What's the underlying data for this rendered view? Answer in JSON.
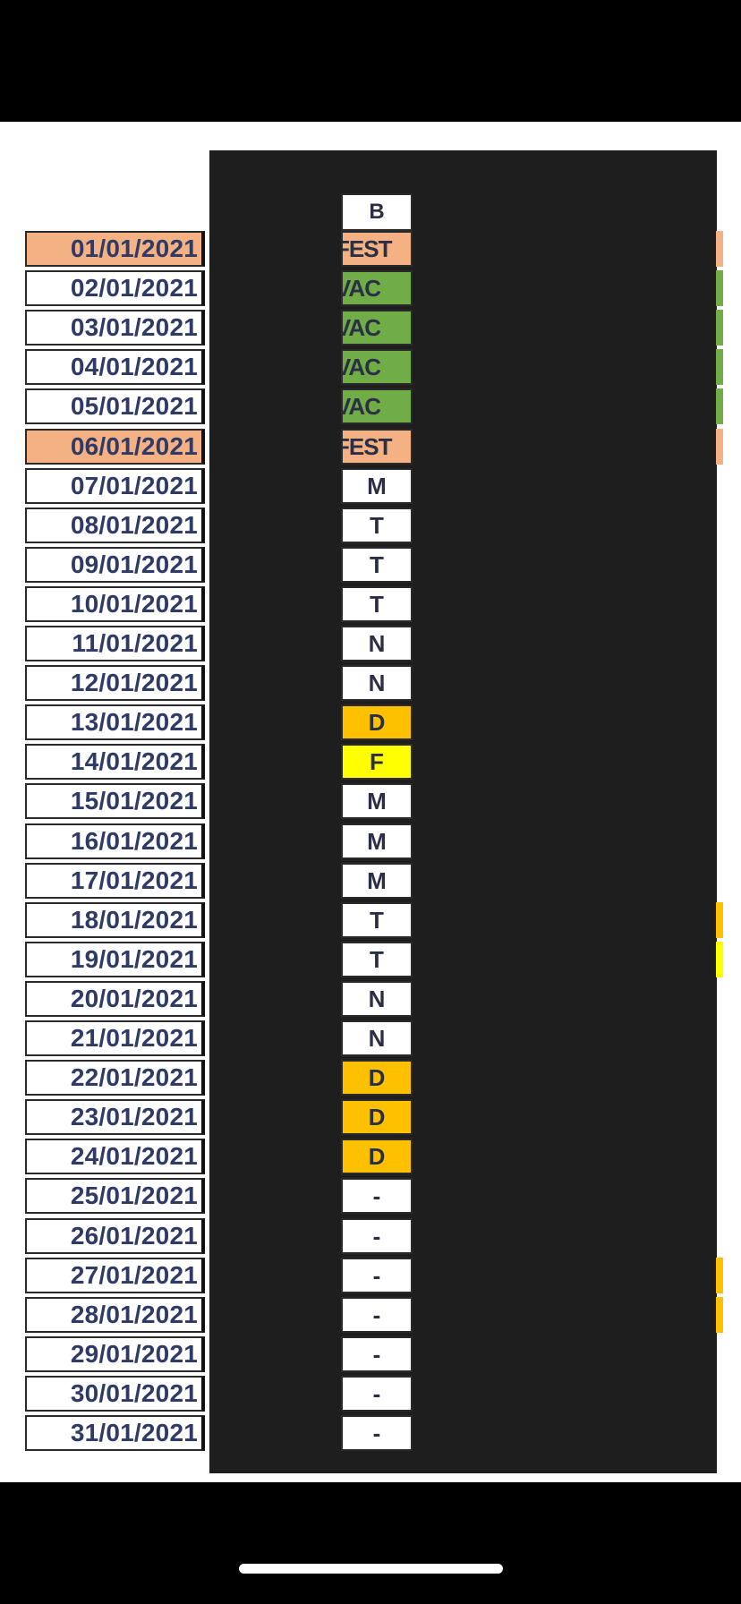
{
  "sheet": {
    "header_code": "B",
    "colors": {
      "fest": "#f4b183",
      "vac": "#70ad47",
      "d": "#ffc000",
      "f": "#ffff00",
      "default": "#ffffff",
      "date_text": "#2f3a66",
      "code_text": "#2a2f45"
    },
    "rows": [
      {
        "date": "01/01/2021",
        "code": "FEST",
        "type": "fest",
        "right_marker": "fest"
      },
      {
        "date": "02/01/2021",
        "code": "VAC",
        "type": "vac",
        "right_marker": "vac"
      },
      {
        "date": "03/01/2021",
        "code": "VAC",
        "type": "vac",
        "right_marker": "vac"
      },
      {
        "date": "04/01/2021",
        "code": "VAC",
        "type": "vac",
        "right_marker": "vac"
      },
      {
        "date": "05/01/2021",
        "code": "VAC",
        "type": "vac",
        "right_marker": "vac"
      },
      {
        "date": "06/01/2021",
        "code": "FEST",
        "type": "fest",
        "right_marker": "fest"
      },
      {
        "date": "07/01/2021",
        "code": "M",
        "type": "default"
      },
      {
        "date": "08/01/2021",
        "code": "T",
        "type": "default"
      },
      {
        "date": "09/01/2021",
        "code": "T",
        "type": "default"
      },
      {
        "date": "10/01/2021",
        "code": "T",
        "type": "default"
      },
      {
        "date": "11/01/2021",
        "code": "N",
        "type": "default"
      },
      {
        "date": "12/01/2021",
        "code": "N",
        "type": "default"
      },
      {
        "date": "13/01/2021",
        "code": "D",
        "type": "d"
      },
      {
        "date": "14/01/2021",
        "code": "F",
        "type": "f"
      },
      {
        "date": "15/01/2021",
        "code": "M",
        "type": "default"
      },
      {
        "date": "16/01/2021",
        "code": "M",
        "type": "default"
      },
      {
        "date": "17/01/2021",
        "code": "M",
        "type": "default"
      },
      {
        "date": "18/01/2021",
        "code": "T",
        "type": "default",
        "right_marker": "d"
      },
      {
        "date": "19/01/2021",
        "code": "T",
        "type": "default",
        "right_marker": "f"
      },
      {
        "date": "20/01/2021",
        "code": "N",
        "type": "default"
      },
      {
        "date": "21/01/2021",
        "code": "N",
        "type": "default"
      },
      {
        "date": "22/01/2021",
        "code": "D",
        "type": "d"
      },
      {
        "date": "23/01/2021",
        "code": "D",
        "type": "d"
      },
      {
        "date": "24/01/2021",
        "code": "D",
        "type": "d"
      },
      {
        "date": "25/01/2021",
        "code": "-",
        "type": "default"
      },
      {
        "date": "26/01/2021",
        "code": "-",
        "type": "default"
      },
      {
        "date": "27/01/2021",
        "code": "-",
        "type": "default",
        "right_marker": "d"
      },
      {
        "date": "28/01/2021",
        "code": "-",
        "type": "default",
        "right_marker": "d"
      },
      {
        "date": "29/01/2021",
        "code": "-",
        "type": "default"
      },
      {
        "date": "30/01/2021",
        "code": "-",
        "type": "default"
      },
      {
        "date": "31/01/2021",
        "code": "-",
        "type": "default"
      }
    ]
  }
}
